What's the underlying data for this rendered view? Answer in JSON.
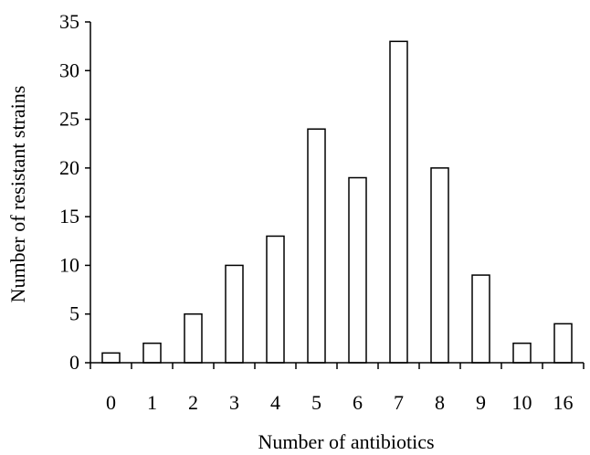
{
  "chart_data": {
    "type": "bar",
    "categories": [
      "0",
      "1",
      "2",
      "3",
      "4",
      "5",
      "6",
      "7",
      "8",
      "9",
      "10",
      "16"
    ],
    "values": [
      1,
      2,
      5,
      10,
      13,
      24,
      19,
      33,
      20,
      9,
      2,
      4
    ],
    "xlabel": "Number of antibiotics",
    "ylabel": "Number of resistant strains",
    "ylim": [
      0,
      35
    ],
    "yticks": [
      0,
      5,
      10,
      15,
      20,
      25,
      30,
      35
    ],
    "grid": false,
    "bar_fill": "#ffffff",
    "bar_stroke": "#000000"
  }
}
